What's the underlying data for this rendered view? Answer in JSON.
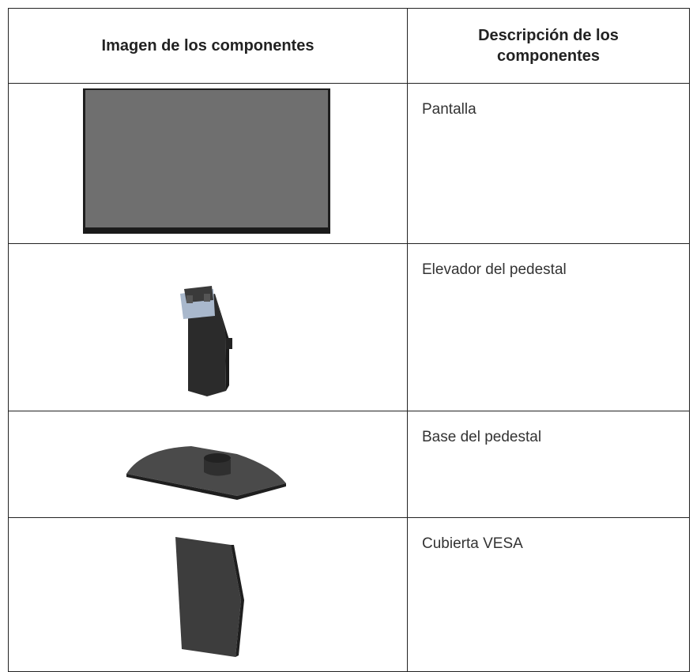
{
  "table": {
    "header": [
      "Imagen de los componentes",
      "Descripción de los componentes"
    ],
    "rows": [
      {
        "description": "Pantalla"
      },
      {
        "description": "Elevador del pedestal"
      },
      {
        "description": "Base del pedestal"
      },
      {
        "description": "Cubierta VESA"
      }
    ]
  }
}
